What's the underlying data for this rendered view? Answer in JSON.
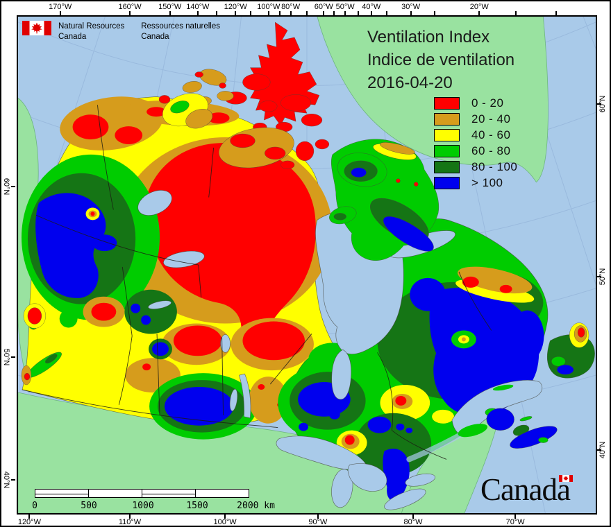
{
  "header": {
    "logo": {
      "en": [
        "Natural Resources",
        "Canada"
      ],
      "fr": [
        "Ressources naturelles",
        "Canada"
      ]
    },
    "title_lines": [
      "Ventilation Index",
      "Indice de ventilation",
      "2016-04-20"
    ]
  },
  "legend": {
    "items": [
      {
        "label": "0 - 20",
        "color": "#FF0000"
      },
      {
        "label": "20 - 40",
        "color": "#D69C1C"
      },
      {
        "label": "40 - 60",
        "color": "#FFFF00"
      },
      {
        "label": "60 - 80",
        "color": "#00CC00"
      },
      {
        "label": "80 - 100",
        "color": "#157515"
      },
      {
        "label": "> 100",
        "color": "#0000EE"
      }
    ]
  },
  "axes": {
    "top": [
      {
        "label": "170°W",
        "pct": 7.5
      },
      {
        "label": "160°W",
        "pct": 19.5
      },
      {
        "label": "150°W",
        "pct": 26.4
      },
      {
        "label": "140°W",
        "pct": 31.2
      },
      {
        "label": "120°W",
        "pct": 37.7
      },
      {
        "label": "100°W",
        "pct": 43.4
      },
      {
        "label": "80°W",
        "pct": 47.2
      },
      {
        "label": "60°W",
        "pct": 52.9
      },
      {
        "label": "50°W",
        "pct": 56.6
      },
      {
        "label": "40°W",
        "pct": 61.1
      },
      {
        "label": "30°W",
        "pct": 67.9
      },
      {
        "label": "20°W",
        "pct": 79.7
      }
    ],
    "top_extra_ticks_pct": [
      34.4,
      40.3,
      45.3,
      50.0,
      54.7,
      58.8,
      63.8,
      72.0,
      86.0,
      93.0
    ],
    "bottom": [
      {
        "label": "120°W",
        "pct": 2.2
      },
      {
        "label": "110°W",
        "pct": 19.5
      },
      {
        "label": "100°W",
        "pct": 35.9
      },
      {
        "label": "90°W",
        "pct": 51.9
      },
      {
        "label": "80°W",
        "pct": 68.3
      },
      {
        "label": "70°W",
        "pct": 85.9
      }
    ],
    "left": [
      {
        "label": "60°N",
        "pct": 34.3
      },
      {
        "label": "50°N",
        "pct": 68.5
      },
      {
        "label": "40°N",
        "pct": 93.1
      }
    ],
    "right": [
      {
        "label": "60°N",
        "pct": 17.8
      },
      {
        "label": "50°N",
        "pct": 52.4
      },
      {
        "label": "40°N",
        "pct": 87.1
      }
    ]
  },
  "scalebar": {
    "labels": [
      "0",
      "500",
      "1000",
      "1500",
      "2000"
    ],
    "unit": "km"
  },
  "footer": {
    "wordmark": "Canada"
  },
  "map": {
    "colors": {
      "water": "#A9CAE9",
      "land": "#99E2A0",
      "land_stroke": "#6DB57F",
      "coast_stroke": "#44443A",
      "graticule": "#8FAFD6",
      "class_0_20": "#FF0000",
      "class_20_40": "#D69C1C",
      "class_40_60": "#FFFF00",
      "class_60_80": "#00CC00",
      "class_80_100": "#157515",
      "class_gt_100": "#0000EE"
    }
  }
}
